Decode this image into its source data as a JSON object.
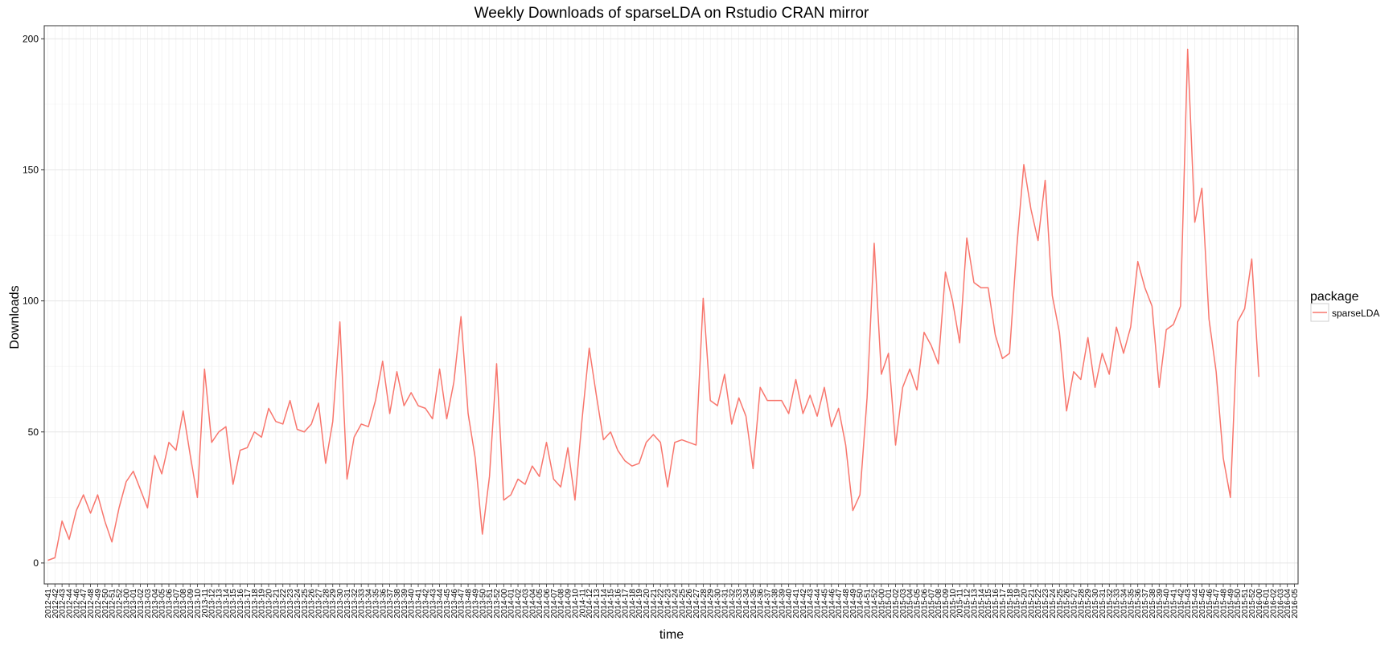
{
  "chart_data": {
    "type": "line",
    "title": "Weekly Downloads of sparseLDA on Rstudio CRAN mirror",
    "xlabel": "time",
    "ylabel": "Downloads",
    "ylim": [
      -8,
      205
    ],
    "yticks": [
      0,
      50,
      100,
      150,
      200
    ],
    "grid": true,
    "legend": {
      "title": "package",
      "position": "right",
      "entries": [
        "sparseLDA"
      ]
    },
    "series": [
      {
        "name": "sparseLDA",
        "color": "#f8766d",
        "points": [
          [
            "2012-41",
            1
          ],
          [
            "2012-42",
            2
          ],
          [
            "2012-43",
            16
          ],
          [
            "2012-44",
            9
          ],
          [
            "2012-45",
            20
          ],
          [
            "2012-46",
            20
          ],
          [
            "2012-47",
            26
          ],
          [
            "2012-48",
            19
          ],
          [
            "2012-49",
            26
          ],
          [
            "2012-50",
            16
          ],
          [
            "2012-51",
            8
          ],
          [
            "2012-52",
            21
          ],
          [
            "2012-53",
            27
          ],
          [
            "2013-00",
            31
          ],
          [
            "2013-01",
            35
          ],
          [
            "2013-03",
            21
          ],
          [
            "2013-04",
            41
          ],
          [
            "2013-05",
            34
          ],
          [
            "2013-06",
            46
          ],
          [
            "2013-07",
            43
          ],
          [
            "2013-08",
            58
          ],
          [
            "2013-09",
            41
          ],
          [
            "2013-10",
            25
          ],
          [
            "2013-11",
            74
          ],
          [
            "2013-12",
            46
          ],
          [
            "2013-13",
            50
          ],
          [
            "2013-14",
            52
          ],
          [
            "2013-15",
            30
          ],
          [
            "2013-16",
            43
          ],
          [
            "2013-17",
            44
          ],
          [
            "2013-18",
            50
          ],
          [
            "2013-19",
            48
          ],
          [
            "2013-20",
            59
          ],
          [
            "2013-21",
            54
          ],
          [
            "2013-22",
            53
          ],
          [
            "2013-23",
            62
          ],
          [
            "2013-24",
            51
          ],
          [
            "2013-25",
            50
          ],
          [
            "2013-26",
            53
          ],
          [
            "2013-27",
            61
          ],
          [
            "2013-28",
            38
          ],
          [
            "2013-29",
            54
          ],
          [
            "2013-30",
            92
          ],
          [
            "2013-31",
            32
          ],
          [
            "2013-32",
            48
          ],
          [
            "2013-33",
            53
          ],
          [
            "2013-34",
            52
          ],
          [
            "2013-35",
            62
          ],
          [
            "2013-36",
            77
          ],
          [
            "2013-37",
            57
          ],
          [
            "2013-38",
            73
          ],
          [
            "2013-39",
            60
          ],
          [
            "2013-40",
            65
          ],
          [
            "2013-41",
            60
          ],
          [
            "2013-42",
            59
          ],
          [
            "2013-43",
            55
          ],
          [
            "2013-44",
            74
          ],
          [
            "2013-45",
            55
          ],
          [
            "2013-46",
            69
          ],
          [
            "2013-47",
            94
          ],
          [
            "2013-48",
            57
          ],
          [
            "2013-49",
            40
          ],
          [
            "2013-50",
            11
          ],
          [
            "2013-51",
            33
          ],
          [
            "2013-52",
            76
          ],
          [
            "2013-53",
            69
          ],
          [
            "2014-00",
            24
          ],
          [
            "2014-01",
            26
          ],
          [
            "2014-02",
            32
          ],
          [
            "2014-03",
            30
          ],
          [
            "2014-04",
            37
          ],
          [
            "2014-05",
            33
          ],
          [
            "2014-06",
            46
          ],
          [
            "2014-07",
            32
          ],
          [
            "2014-08",
            29
          ],
          [
            "2014-09",
            44
          ],
          [
            "2014-10",
            24
          ],
          [
            "2014-11",
            55
          ],
          [
            "2014-12",
            82
          ],
          [
            "2014-13",
            64
          ],
          [
            "2014-14",
            47
          ],
          [
            "2014-15",
            50
          ],
          [
            "2014-16",
            43
          ],
          [
            "2014-17",
            39
          ],
          [
            "2014-18",
            37
          ],
          [
            "2014-19",
            38
          ],
          [
            "2014-20",
            46
          ],
          [
            "2014-21",
            49
          ],
          [
            "2014-22",
            46
          ],
          [
            "2014-23",
            29
          ],
          [
            "2014-24",
            46
          ],
          [
            "2014-25",
            47
          ],
          [
            "2014-26",
            46
          ],
          [
            "2014-27",
            45
          ],
          [
            "2014-28",
            101
          ],
          [
            "2014-29",
            62
          ],
          [
            "2014-30",
            60
          ],
          [
            "2014-31",
            72
          ],
          [
            "2014-32",
            53
          ],
          [
            "2014-33",
            63
          ],
          [
            "2014-34",
            56
          ],
          [
            "2014-35",
            36
          ],
          [
            "2014-36",
            67
          ],
          [
            "2014-37",
            62
          ],
          [
            "2014-38",
            62
          ],
          [
            "2014-39",
            62
          ],
          [
            "2014-40",
            57
          ],
          [
            "2014-41",
            70
          ],
          [
            "2014-42",
            57
          ],
          [
            "2014-43",
            64
          ],
          [
            "2014-44",
            56
          ],
          [
            "2014-45",
            67
          ],
          [
            "2014-46",
            52
          ],
          [
            "2014-47",
            59
          ],
          [
            "2014-48",
            45
          ],
          [
            "2014-49",
            20
          ],
          [
            "2014-50",
            26
          ],
          [
            "2014-51",
            63
          ],
          [
            "2014-52",
            122
          ],
          [
            "2014-53",
            71
          ],
          [
            "2015-00",
            72
          ],
          [
            "2015-01",
            80
          ],
          [
            "2015-02",
            45
          ],
          [
            "2015-03",
            67
          ],
          [
            "2015-04",
            74
          ],
          [
            "2015-05",
            66
          ],
          [
            "2015-06",
            88
          ],
          [
            "2015-07",
            83
          ],
          [
            "2015-08",
            76
          ],
          [
            "2015-09",
            111
          ],
          [
            "2015-10",
            100
          ],
          [
            "2015-11",
            84
          ],
          [
            "2015-12",
            124
          ],
          [
            "2015-13",
            107
          ],
          [
            "2015-14",
            105
          ],
          [
            "2015-15",
            105
          ],
          [
            "2015-16",
            87
          ],
          [
            "2015-17",
            78
          ],
          [
            "2015-18",
            80
          ],
          [
            "2015-19",
            120
          ],
          [
            "2015-20",
            152
          ],
          [
            "2015-21",
            135
          ],
          [
            "2015-22",
            123
          ],
          [
            "2015-23",
            146
          ],
          [
            "2015-24",
            102
          ],
          [
            "2015-25",
            88
          ],
          [
            "2015-26",
            58
          ],
          [
            "2015-27",
            73
          ],
          [
            "2015-28",
            70
          ],
          [
            "2015-29",
            86
          ],
          [
            "2015-30",
            67
          ],
          [
            "2015-31",
            80
          ],
          [
            "2015-32",
            72
          ],
          [
            "2015-33",
            90
          ],
          [
            "2015-34",
            80
          ],
          [
            "2015-35",
            90
          ],
          [
            "2015-36",
            115
          ],
          [
            "2015-37",
            105
          ],
          [
            "2015-38",
            98
          ],
          [
            "2015-39",
            67
          ],
          [
            "2015-40",
            89
          ],
          [
            "2015-41",
            91
          ],
          [
            "2015-42",
            98
          ],
          [
            "2015-43",
            196
          ],
          [
            "2015-44",
            130
          ],
          [
            "2015-45",
            143
          ],
          [
            "2015-46",
            93
          ],
          [
            "2015-47",
            73
          ],
          [
            "2015-48",
            40
          ],
          [
            "2015-49",
            25
          ],
          [
            "2015-50",
            92
          ],
          [
            "2015-51",
            97
          ],
          [
            "2015-52",
            116
          ],
          [
            "2015-53",
            124
          ],
          [
            "2016-00",
            71
          ]
        ]
      }
    ],
    "tick_labels": [
      "2012-41",
      "2012-42",
      "2012-43",
      "2012-44",
      "2012-46",
      "2012-47",
      "2012-48",
      "2012-49",
      "2012-50",
      "2012-51",
      "2012-52",
      "2013-00",
      "2013-01",
      "2013-02",
      "2013-03",
      "2013-04",
      "2013-05",
      "2013-06",
      "2013-07",
      "2013-08",
      "2013-09",
      "2013-10",
      "2013-11",
      "2013-12",
      "2013-13",
      "2013-14",
      "2013-15",
      "2013-16",
      "2013-17",
      "2013-18",
      "2013-19",
      "2013-20",
      "2013-21",
      "2013-22",
      "2013-23",
      "2013-24",
      "2013-25",
      "2013-26",
      "2013-27",
      "2013-28",
      "2013-29",
      "2013-30",
      "2013-31",
      "2013-32",
      "2013-33",
      "2013-34",
      "2013-35",
      "2013-36",
      "2013-37",
      "2013-38",
      "2013-39",
      "2013-40",
      "2013-41",
      "2013-42",
      "2013-43",
      "2013-44",
      "2013-45",
      "2013-46",
      "2013-47",
      "2013-48",
      "2013-49",
      "2013-50",
      "2013-51",
      "2013-52",
      "2014-00",
      "2014-01",
      "2014-02",
      "2014-03",
      "2014-04",
      "2014-05",
      "2014-06",
      "2014-07",
      "2014-08",
      "2014-09",
      "2014-10",
      "2014-11",
      "2014-12",
      "2014-13",
      "2014-14",
      "2014-15",
      "2014-16",
      "2014-17",
      "2014-18",
      "2014-19",
      "2014-20",
      "2014-21",
      "2014-22",
      "2014-23",
      "2014-24",
      "2014-25",
      "2014-26",
      "2014-27",
      "2014-28",
      "2014-29",
      "2014-30",
      "2014-31",
      "2014-32",
      "2014-33",
      "2014-34",
      "2014-35",
      "2014-36",
      "2014-37",
      "2014-38",
      "2014-39",
      "2014-40",
      "2014-41",
      "2014-42",
      "2014-43",
      "2014-44",
      "2014-45",
      "2014-46",
      "2014-47",
      "2014-48",
      "2014-49",
      "2014-50",
      "2014-51",
      "2014-52",
      "2015-00",
      "2015-01",
      "2015-02",
      "2015-03",
      "2015-04",
      "2015-05",
      "2015-06",
      "2015-07",
      "2015-08",
      "2015-09",
      "2015-10",
      "2015-11",
      "2015-12",
      "2015-13",
      "2015-14",
      "2015-15",
      "2015-16",
      "2015-17",
      "2015-18",
      "2015-19",
      "2015-20",
      "2015-21",
      "2015-22",
      "2015-23",
      "2015-24",
      "2015-25",
      "2015-26",
      "2015-27",
      "2015-28",
      "2015-29",
      "2015-30",
      "2015-31",
      "2015-32",
      "2015-33",
      "2015-34",
      "2015-35",
      "2015-36",
      "2015-37",
      "2015-38",
      "2015-39",
      "2015-40",
      "2015-41",
      "2015-42",
      "2015-43",
      "2015-44",
      "2015-45",
      "2015-46",
      "2015-47",
      "2015-48",
      "2015-49",
      "2015-50",
      "2015-51",
      "2015-52",
      "2016-00",
      "2016-01",
      "2016-02",
      "2016-03",
      "2016-04",
      "2016-05"
    ]
  }
}
